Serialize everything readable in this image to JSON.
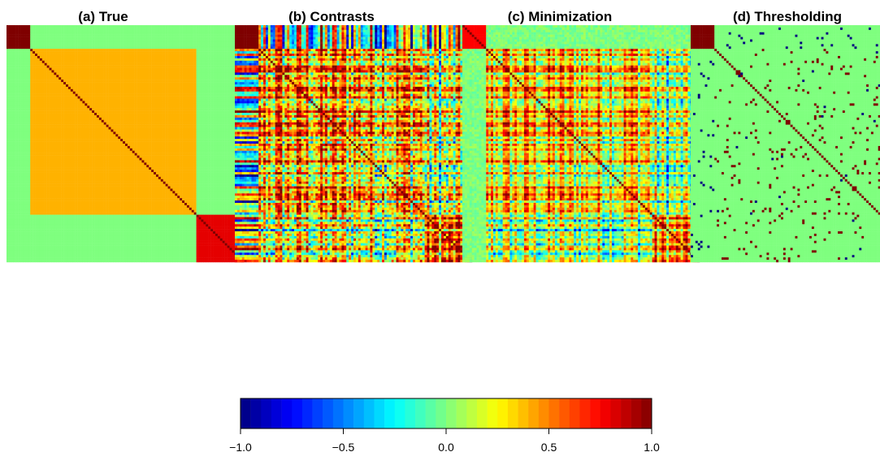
{
  "chart_data": [
    {
      "type": "heatmap",
      "title": "(a) True",
      "matrix_size": 100,
      "structure": {
        "blocks": [
          {
            "rows": [
              1,
              10
            ],
            "value": 1.0
          },
          {
            "rows": [
              11,
              80
            ],
            "value": 0.4
          },
          {
            "rows": [
              81,
              100
            ],
            "value": 0.8
          }
        ],
        "off_block_value": 0.0,
        "diagonal": 1.0
      }
    },
    {
      "type": "heatmap",
      "title": "(b) Contrasts",
      "matrix_size": 100,
      "description_values": {
        "top_left_block": 1.0,
        "range": [
          -1.0,
          1.0
        ]
      }
    },
    {
      "type": "heatmap",
      "title": "(c) Minimization",
      "matrix_size": 100,
      "description_values": {
        "top_left_block": 0.8,
        "range": [
          -0.5,
          1.0
        ]
      }
    },
    {
      "type": "heatmap",
      "title": "(d) Thresholding",
      "matrix_size": 100,
      "description_values": {
        "top_left_block": 1.0,
        "background": 0.0,
        "sparse_value": 1.0
      }
    },
    {
      "type": "colorbar",
      "range": [
        -1.0,
        1.0
      ],
      "ticks": [
        -1.0,
        -0.5,
        0.0,
        0.5,
        1.0
      ],
      "tick_labels": [
        "−1.0",
        "−0.5",
        "0.0",
        "0.5",
        "1.0"
      ],
      "n_colors": 40
    }
  ],
  "colors": {
    "colormap": [
      "#00007F",
      "#0000FF",
      "#007FFF",
      "#00FFFF",
      "#7FFF7F",
      "#FFFF00",
      "#FF7F00",
      "#FF0000",
      "#7F0000"
    ]
  }
}
